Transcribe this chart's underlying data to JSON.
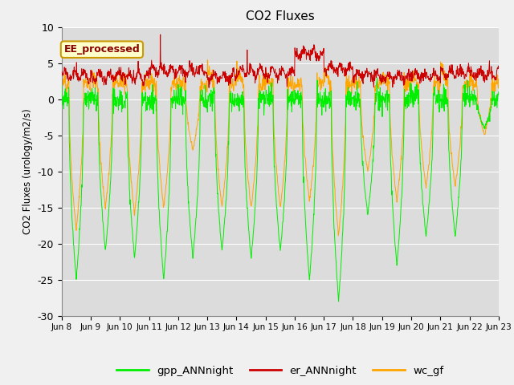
{
  "title": "CO2 Fluxes",
  "ylabel": "CO2 Fluxes (urology/m2/s)",
  "ylim": [
    -30,
    10
  ],
  "fig_facecolor": "#f0f0f0",
  "plot_bg_color": "#dcdcdc",
  "colors": {
    "gpp": "#00ee00",
    "er": "#cc0000",
    "wc": "#ffa500"
  },
  "legend_labels": [
    "gpp_ANNnight",
    "er_ANNnight",
    "wc_gf"
  ],
  "annotation_text": "EE_processed",
  "xtick_labels": [
    "Jun 8",
    "Jun 9",
    "Jun 10",
    "Jun 11",
    "Jun 12",
    "Jun 13",
    "Jun 14",
    "Jun 15",
    "Jun 16",
    "Jun 17",
    "Jun 18",
    "Jun 19",
    "Jun 20",
    "Jun 21",
    "Jun 22",
    "Jun 23"
  ],
  "n_days": 15,
  "ppd": 96,
  "seed": 7
}
